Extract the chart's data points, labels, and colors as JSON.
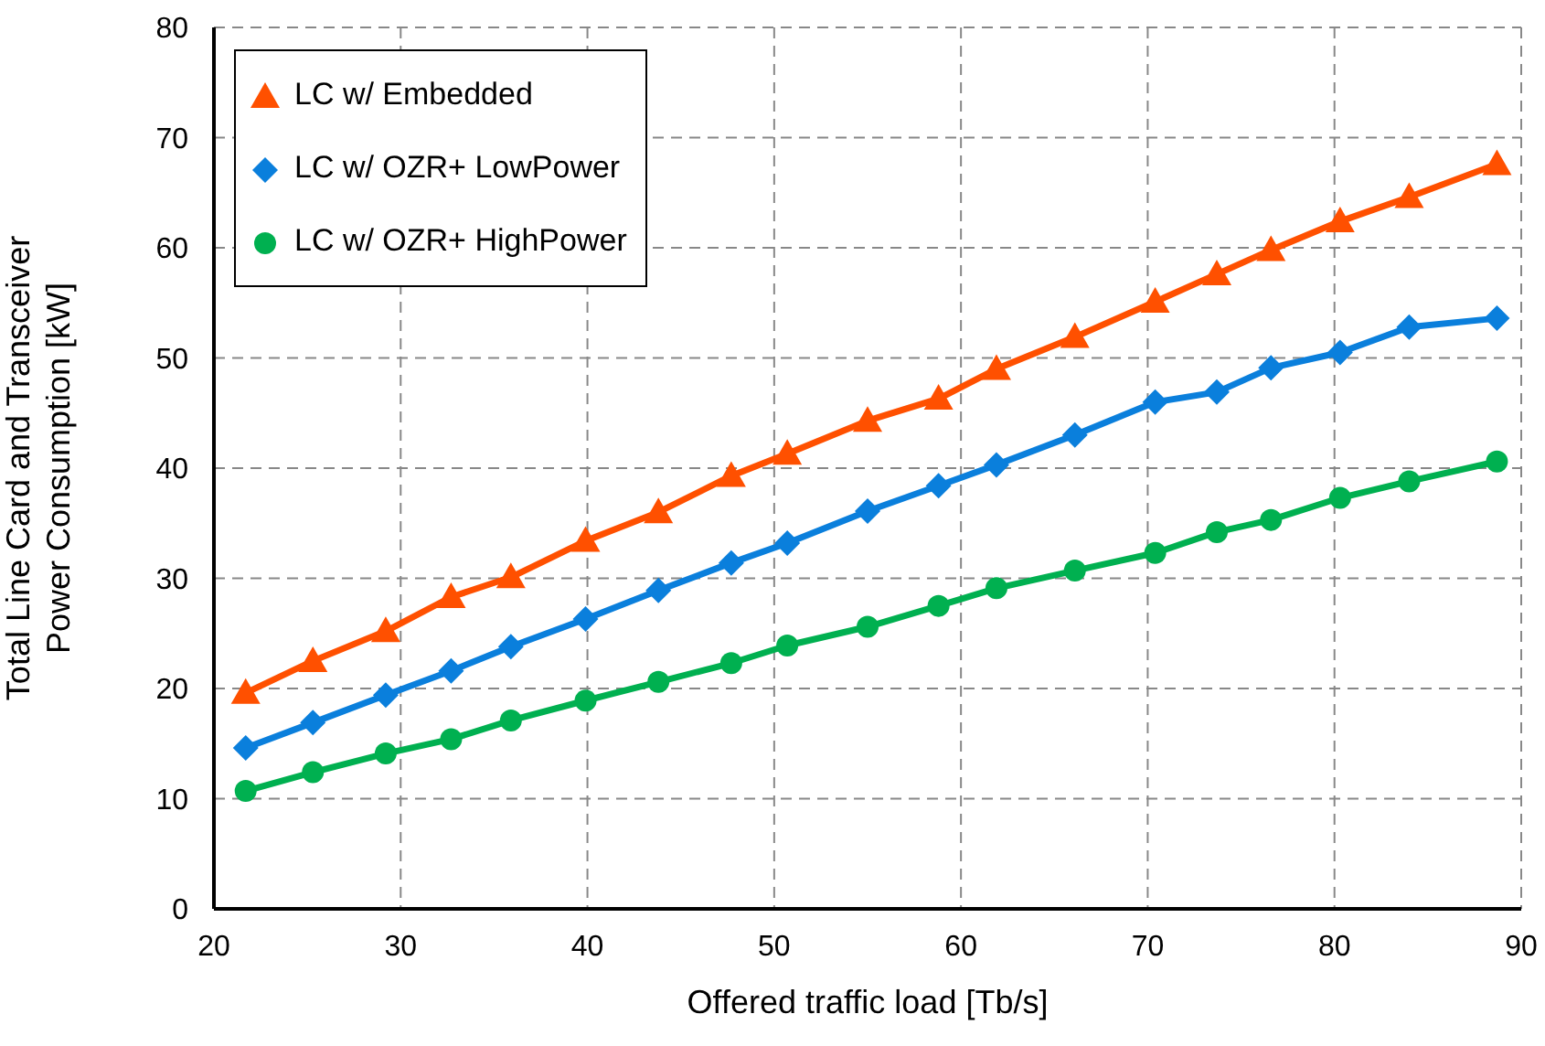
{
  "chart_data": {
    "type": "line",
    "xlabel": "Offered traffic load [Tb/s]",
    "ylabel": "Total Line Card and Transceiver\nPower Consumption [kW]",
    "x": [
      21.7,
      25.3,
      29.2,
      32.7,
      35.9,
      39.9,
      43.8,
      47.7,
      50.7,
      55.0,
      58.8,
      61.9,
      66.1,
      70.4,
      73.7,
      76.6,
      80.3,
      84.0,
      88.7
    ],
    "series": [
      {
        "name": "LC w/ Embedded",
        "color": "#ff5000",
        "marker": "triangle",
        "values": [
          19.6,
          22.5,
          25.2,
          28.3,
          30.1,
          33.4,
          36.0,
          39.3,
          41.3,
          44.3,
          46.3,
          49.0,
          51.9,
          55.1,
          57.6,
          59.8,
          62.4,
          64.6,
          67.6
        ]
      },
      {
        "name": "LC w/ OZR+ LowPower",
        "color": "#0a7fdc",
        "marker": "diamond",
        "values": [
          14.6,
          16.9,
          19.4,
          21.6,
          23.8,
          26.3,
          28.9,
          31.4,
          33.2,
          36.1,
          38.4,
          40.3,
          43.0,
          46.0,
          46.9,
          49.1,
          50.5,
          52.8,
          53.6
        ]
      },
      {
        "name": "LC w/ OZR+ HighPower",
        "color": "#00b050",
        "marker": "circle",
        "values": [
          10.7,
          12.4,
          14.1,
          15.4,
          17.1,
          18.9,
          20.6,
          22.3,
          23.9,
          25.6,
          27.5,
          29.1,
          30.7,
          32.3,
          34.2,
          35.3,
          37.3,
          38.8,
          40.6
        ]
      }
    ],
    "xlim": [
      20,
      90
    ],
    "xticks": [
      20,
      30,
      40,
      50,
      60,
      70,
      80,
      90
    ],
    "ylim": [
      0,
      80
    ],
    "yticks": [
      0,
      10,
      20,
      30,
      40,
      50,
      60,
      70,
      80
    ],
    "grid": true,
    "legend": "top left",
    "line_style": "solid"
  }
}
